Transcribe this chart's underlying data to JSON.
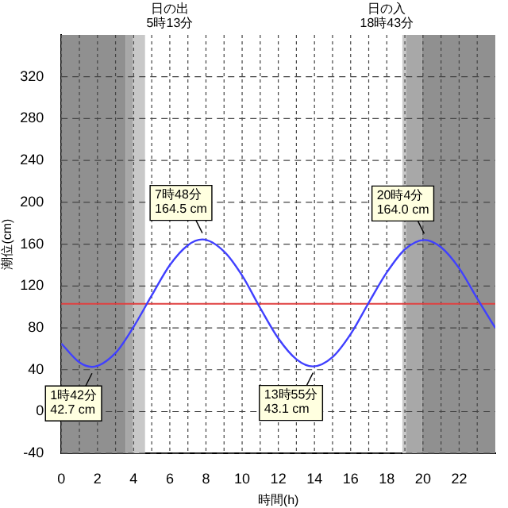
{
  "chart_data": {
    "type": "line",
    "xlabel": "時間(h)",
    "ylabel": "潮位(cm)",
    "x": [
      0,
      1,
      1.7,
      3,
      4,
      5,
      6,
      7,
      7.8,
      9,
      10,
      11,
      12,
      13,
      13.92,
      15,
      16,
      17,
      18,
      19,
      20.07,
      21,
      22,
      23,
      24
    ],
    "series": [
      {
        "color": "#4040ff",
        "values": [
          65,
          47,
          42.7,
          56,
          81,
          111,
          140,
          159,
          164.5,
          153,
          130,
          99,
          70,
          50,
          43.1,
          52,
          74,
          104,
          133,
          155,
          164.0,
          157,
          137,
          108,
          80
        ]
      }
    ],
    "xlim": [
      0,
      24
    ],
    "xticks": [
      0,
      {
        "value": 1,
        "label": null
      },
      2,
      {
        "value": 3,
        "label": null
      },
      4,
      {
        "value": 5,
        "label": null
      },
      6,
      {
        "value": 7,
        "label": null
      },
      8,
      {
        "value": 9,
        "label": null
      },
      10,
      {
        "value": 11,
        "label": null
      },
      12,
      {
        "value": 13,
        "label": null
      },
      14,
      {
        "value": 15,
        "label": null
      },
      16,
      {
        "value": 17,
        "label": null
      },
      18,
      {
        "value": 19,
        "label": null
      },
      20,
      {
        "value": 21,
        "label": null
      },
      22,
      {
        "value": 23,
        "label": null
      }
    ],
    "ylim": [
      -40,
      360
    ],
    "yticks": [
      -40,
      0,
      40,
      80,
      120,
      160,
      200,
      240,
      280,
      320
    ],
    "grid": true,
    "marker": "none",
    "line_style": "solid",
    "ref_lines": [
      {
        "axis": "y",
        "value": 103,
        "color": "#e04040"
      }
    ],
    "bands": [
      {
        "axis": "x",
        "from": 0,
        "to": 3.55,
        "color": "#909090"
      },
      {
        "axis": "x",
        "from": 3.55,
        "to": 3.97,
        "color": "#a8a8a8"
      },
      {
        "axis": "x",
        "from": 3.97,
        "to": 4.63,
        "color": "#c8c8c8"
      },
      {
        "axis": "x",
        "from": 18.86,
        "to": 19.08,
        "color": "#c8c8c8"
      },
      {
        "axis": "x",
        "from": 19.08,
        "to": 19.94,
        "color": "#a8a8a8"
      },
      {
        "axis": "x",
        "from": 19.94,
        "to": 24,
        "color": "#909090"
      }
    ],
    "annotations": [
      "日の出\n5時13分",
      "日の入\n18時43分",
      {
        "text": "1時42分\n42.7 cm",
        "x": 1.7,
        "y": 42.7
      },
      {
        "text": "7時48分\n164.5 cm",
        "x": 7.8,
        "y": 164.5
      },
      {
        "text": "13時55分\n43.1 cm",
        "x": 13.92,
        "y": 43.1
      },
      {
        "text": "20時4分\n164.0 cm",
        "x": 20.07,
        "y": 164.0
      }
    ]
  }
}
